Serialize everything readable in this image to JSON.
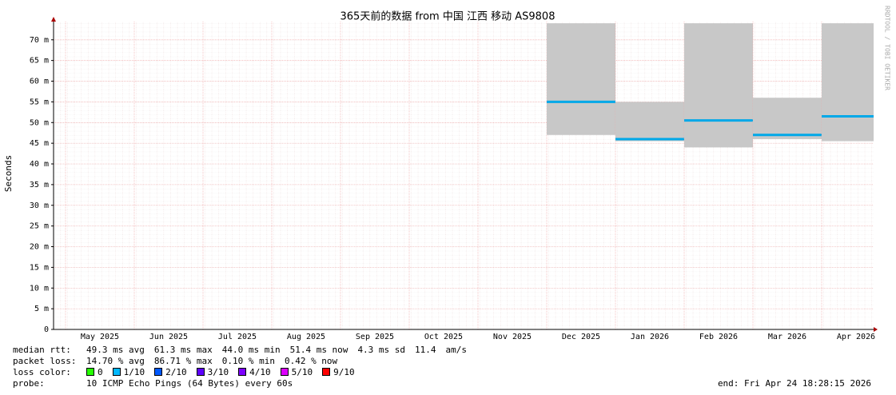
{
  "chart_data": {
    "type": "smoke",
    "title": "365天前的数据 from 中国 江西 移动 AS9808",
    "y_label": "Seconds",
    "watermark": "RRDTOOL / TOBI OETIKER",
    "categories": [
      "May 2025",
      "Jun 2025",
      "Jul 2025",
      "Aug 2025",
      "Sep 2025",
      "Oct 2025",
      "Nov 2025",
      "Dec 2025",
      "Jan 2026",
      "Feb 2026",
      "Mar 2026",
      "Apr 2026"
    ],
    "ylim": [
      0,
      74.4
    ],
    "yticks": [
      0,
      {
        "value": 5,
        "label": "5 m"
      },
      {
        "value": 10,
        "label": "10 m"
      },
      {
        "value": 15,
        "label": "15 m"
      },
      {
        "value": 20,
        "label": "20 m"
      },
      {
        "value": 25,
        "label": "25 m"
      },
      {
        "value": 30,
        "label": "30 m"
      },
      {
        "value": 35,
        "label": "35 m"
      },
      {
        "value": 40,
        "label": "40 m"
      },
      {
        "value": 45,
        "label": "45 m"
      },
      {
        "value": 50,
        "label": "50 m"
      },
      {
        "value": 55,
        "label": "55 m"
      },
      {
        "value": 60,
        "label": "60 m"
      },
      {
        "value": 65,
        "label": "65 m"
      },
      {
        "value": 70,
        "label": "70 m"
      }
    ],
    "grid": true,
    "smoke": {
      "color": "#c8c8c8",
      "high": [
        null,
        null,
        null,
        null,
        null,
        null,
        null,
        74,
        55,
        74,
        56,
        74
      ],
      "low": [
        null,
        null,
        null,
        null,
        null,
        null,
        null,
        47,
        45.5,
        44,
        46,
        45.5
      ]
    },
    "median": {
      "color": "#00a8e8",
      "values": [
        null,
        null,
        null,
        null,
        null,
        null,
        null,
        55,
        46,
        50.5,
        47,
        51.5
      ]
    },
    "stats": [
      [
        "median rtt:",
        "49.3 ms avg",
        "61.3 ms max",
        "44.0 ms min",
        "51.4 ms now",
        "4.3 ms sd",
        "11.4",
        "am/s"
      ],
      [
        "packet loss:",
        "14.70 % avg",
        "86.71 % max",
        "0.10 % min",
        "0.42 % now"
      ]
    ],
    "loss_label": "loss color:",
    "loss_colors": [
      {
        "label": "0",
        "color": "#26ff00"
      },
      {
        "label": "1/10",
        "color": "#00b8ff"
      },
      {
        "label": "2/10",
        "color": "#0059ff"
      },
      {
        "label": "3/10",
        "color": "#5e00ff"
      },
      {
        "label": "4/10",
        "color": "#7e00ff"
      },
      {
        "label": "5/10",
        "color": "#dd00ff"
      },
      {
        "label": "9/10",
        "color": "#ff0000"
      }
    ],
    "probe_label": "probe:",
    "probe": "10 ICMP Echo Pings (64 Bytes) every 60s",
    "end": "end: Fri Apr 24 18:28:15 2026"
  }
}
